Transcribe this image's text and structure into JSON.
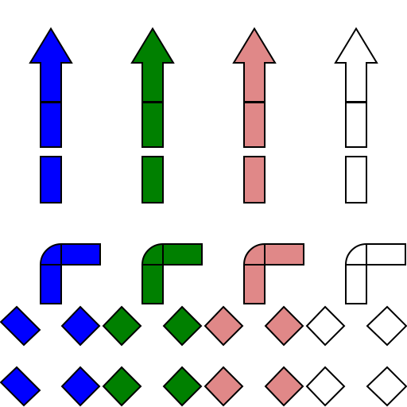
{
  "colors": {
    "blue": "#0000ff",
    "green": "#008000",
    "pink": "#e08888",
    "white": "#ffffff",
    "outline": "#000000",
    "background": "#ffffff"
  },
  "tile_sets": [
    {
      "name": "blue",
      "color": "blue"
    },
    {
      "name": "green",
      "color": "green"
    },
    {
      "name": "pink",
      "color": "pink"
    },
    {
      "name": "white",
      "color": "white"
    }
  ],
  "tiles": {
    "arrow_columns": [
      "blue",
      "green",
      "pink",
      "white"
    ],
    "corner_pieces": [
      "blue",
      "green",
      "pink",
      "white"
    ],
    "diagonal_rows": [
      [
        "blue",
        "blue",
        "green",
        "green",
        "pink",
        "pink",
        "white",
        "white"
      ],
      [
        "blue",
        "blue",
        "green",
        "green",
        "pink",
        "pink",
        "white",
        "white"
      ]
    ]
  }
}
